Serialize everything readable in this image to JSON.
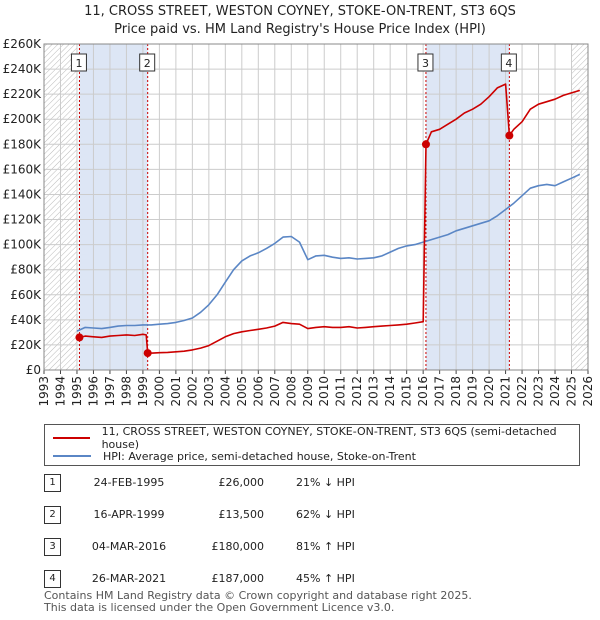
{
  "title": "11, CROSS STREET, WESTON COYNEY, STOKE-ON-TRENT, ST3 6QS",
  "subtitle": "Price paid vs. HM Land Registry's House Price Index (HPI)",
  "colors": {
    "property": "#cc0000",
    "hpi": "#5a86c5",
    "shade": "#dde6f5",
    "grid": "#cccccc"
  },
  "legend": [
    {
      "label": "11, CROSS STREET, WESTON COYNEY, STOKE-ON-TRENT, ST3 6QS (semi-detached house)",
      "color": "#cc0000"
    },
    {
      "label": "HPI: Average price, semi-detached house, Stoke-on-Trent",
      "color": "#5a86c5"
    }
  ],
  "sales": [
    {
      "num": "1",
      "date": "24-FEB-1995",
      "price": "£26,000",
      "hpi": "21% ↓ HPI",
      "t": 1995.15,
      "value": 26000
    },
    {
      "num": "2",
      "date": "16-APR-1999",
      "price": "£13,500",
      "hpi": "62% ↓ HPI",
      "t": 1999.29,
      "value": 13500
    },
    {
      "num": "3",
      "date": "04-MAR-2016",
      "price": "£180,000",
      "hpi": "81% ↑ HPI",
      "t": 2016.17,
      "value": 180000
    },
    {
      "num": "4",
      "date": "26-MAR-2021",
      "price": "£187,000",
      "hpi": "45% ↑ HPI",
      "t": 2021.23,
      "value": 187000
    }
  ],
  "footer": {
    "line1": "Contains HM Land Registry data © Crown copyright and database right 2025.",
    "line2": "This data is licensed under the Open Government Licence v3.0."
  },
  "chart_data": {
    "type": "line",
    "title": "11, CROSS STREET, WESTON COYNEY, STOKE-ON-TRENT, ST3 6QS",
    "subtitle": "Price paid vs. HM Land Registry's House Price Index (HPI)",
    "xlim": [
      1993,
      2026
    ],
    "ylim": [
      0,
      260000
    ],
    "x_ticks": [
      "1993",
      "1994",
      "1995",
      "1996",
      "1997",
      "1998",
      "1999",
      "2000",
      "2001",
      "2002",
      "2003",
      "2004",
      "2005",
      "2006",
      "2007",
      "2008",
      "2009",
      "2010",
      "2011",
      "2012",
      "2013",
      "2014",
      "2015",
      "2016",
      "2017",
      "2018",
      "2019",
      "2020",
      "2021",
      "2022",
      "2023",
      "2024",
      "2025",
      "2026"
    ],
    "y_ticks": [
      {
        "v": 0,
        "label": "£0"
      },
      {
        "v": 20000,
        "label": "£20K"
      },
      {
        "v": 40000,
        "label": "£40K"
      },
      {
        "v": 60000,
        "label": "£60K"
      },
      {
        "v": 80000,
        "label": "£80K"
      },
      {
        "v": 100000,
        "label": "£100K"
      },
      {
        "v": 120000,
        "label": "£120K"
      },
      {
        "v": 140000,
        "label": "£140K"
      },
      {
        "v": 160000,
        "label": "£160K"
      },
      {
        "v": 180000,
        "label": "£180K"
      },
      {
        "v": 200000,
        "label": "£200K"
      },
      {
        "v": 220000,
        "label": "£220K"
      },
      {
        "v": 240000,
        "label": "£240K"
      },
      {
        "v": 260000,
        "label": "£260K"
      }
    ],
    "shaded_ranges": [
      [
        1995.15,
        1999.29
      ],
      [
        2016.17,
        2021.23
      ]
    ],
    "hatched_ranges": [
      [
        1993,
        1995.0
      ],
      [
        2025.0,
        2026
      ]
    ],
    "series": [
      {
        "name": "11, CROSS STREET, WESTON COYNEY, STOKE-ON-TRENT, ST3 6QS (semi-detached house)",
        "color": "#cc0000",
        "points": [
          [
            1995.15,
            26000
          ],
          [
            1995.5,
            27000
          ],
          [
            1996,
            26500
          ],
          [
            1996.5,
            26000
          ],
          [
            1997,
            27000
          ],
          [
            1997.5,
            27500
          ],
          [
            1998,
            28000
          ],
          [
            1998.5,
            27500
          ],
          [
            1999.0,
            28500
          ],
          [
            1999.2,
            28000
          ],
          [
            1999.29,
            13500
          ],
          [
            1999.6,
            13500
          ],
          [
            2000,
            13800
          ],
          [
            2000.5,
            14000
          ],
          [
            2001,
            14500
          ],
          [
            2001.5,
            15000
          ],
          [
            2002,
            16000
          ],
          [
            2002.5,
            17500
          ],
          [
            2003,
            19500
          ],
          [
            2003.5,
            23000
          ],
          [
            2004,
            26500
          ],
          [
            2004.5,
            29000
          ],
          [
            2005,
            30500
          ],
          [
            2005.5,
            31500
          ],
          [
            2006,
            32500
          ],
          [
            2006.5,
            33500
          ],
          [
            2007,
            35000
          ],
          [
            2007.5,
            38000
          ],
          [
            2008,
            37000
          ],
          [
            2008.5,
            36500
          ],
          [
            2009,
            33000
          ],
          [
            2009.5,
            34000
          ],
          [
            2010,
            34500
          ],
          [
            2010.5,
            34000
          ],
          [
            2011,
            34000
          ],
          [
            2011.5,
            34500
          ],
          [
            2012,
            33500
          ],
          [
            2012.5,
            34000
          ],
          [
            2013,
            34500
          ],
          [
            2013.5,
            35000
          ],
          [
            2014,
            35500
          ],
          [
            2014.5,
            36000
          ],
          [
            2015,
            36500
          ],
          [
            2015.5,
            37500
          ],
          [
            2016.0,
            38500
          ],
          [
            2016.17,
            180000
          ],
          [
            2016.5,
            190000
          ],
          [
            2017,
            192000
          ],
          [
            2017.5,
            196000
          ],
          [
            2018,
            200000
          ],
          [
            2018.5,
            205000
          ],
          [
            2019,
            208000
          ],
          [
            2019.5,
            212000
          ],
          [
            2020,
            218000
          ],
          [
            2020.5,
            225000
          ],
          [
            2021.0,
            228000
          ],
          [
            2021.23,
            187000
          ],
          [
            2021.5,
            192000
          ],
          [
            2022,
            198000
          ],
          [
            2022.5,
            208000
          ],
          [
            2023,
            212000
          ],
          [
            2023.5,
            214000
          ],
          [
            2024,
            216000
          ],
          [
            2024.5,
            219000
          ],
          [
            2025,
            221000
          ],
          [
            2025.5,
            223000
          ]
        ]
      },
      {
        "name": "HPI: Average price, semi-detached house, Stoke-on-Trent",
        "color": "#5a86c5",
        "points": [
          [
            1995.0,
            31000
          ],
          [
            1995.5,
            34000
          ],
          [
            1996,
            33500
          ],
          [
            1996.5,
            33000
          ],
          [
            1997,
            34000
          ],
          [
            1997.5,
            35000
          ],
          [
            1998,
            35500
          ],
          [
            1998.5,
            35500
          ],
          [
            1999,
            36000
          ],
          [
            1999.5,
            36000
          ],
          [
            2000,
            36500
          ],
          [
            2000.5,
            37000
          ],
          [
            2001,
            38000
          ],
          [
            2001.5,
            39500
          ],
          [
            2002,
            41500
          ],
          [
            2002.5,
            46000
          ],
          [
            2003,
            52000
          ],
          [
            2003.5,
            60000
          ],
          [
            2004,
            70000
          ],
          [
            2004.5,
            80000
          ],
          [
            2005,
            87000
          ],
          [
            2005.5,
            91000
          ],
          [
            2006,
            93500
          ],
          [
            2006.5,
            97000
          ],
          [
            2007,
            101000
          ],
          [
            2007.5,
            106000
          ],
          [
            2008,
            106500
          ],
          [
            2008.5,
            102000
          ],
          [
            2009,
            88000
          ],
          [
            2009.5,
            91000
          ],
          [
            2010,
            91500
          ],
          [
            2010.5,
            90000
          ],
          [
            2011,
            89000
          ],
          [
            2011.5,
            89500
          ],
          [
            2012,
            88500
          ],
          [
            2012.5,
            89000
          ],
          [
            2013,
            89500
          ],
          [
            2013.5,
            91000
          ],
          [
            2014,
            94000
          ],
          [
            2014.5,
            97000
          ],
          [
            2015,
            99000
          ],
          [
            2015.5,
            100000
          ],
          [
            2016,
            102000
          ],
          [
            2016.5,
            104000
          ],
          [
            2017,
            106000
          ],
          [
            2017.5,
            108000
          ],
          [
            2018,
            111000
          ],
          [
            2018.5,
            113000
          ],
          [
            2019,
            115000
          ],
          [
            2019.5,
            117000
          ],
          [
            2020,
            119000
          ],
          [
            2020.5,
            123000
          ],
          [
            2021,
            128000
          ],
          [
            2021.5,
            133000
          ],
          [
            2022,
            139000
          ],
          [
            2022.5,
            145000
          ],
          [
            2023,
            147000
          ],
          [
            2023.5,
            148000
          ],
          [
            2024,
            147000
          ],
          [
            2024.5,
            150000
          ],
          [
            2025,
            153000
          ],
          [
            2025.5,
            156000
          ]
        ]
      }
    ]
  }
}
